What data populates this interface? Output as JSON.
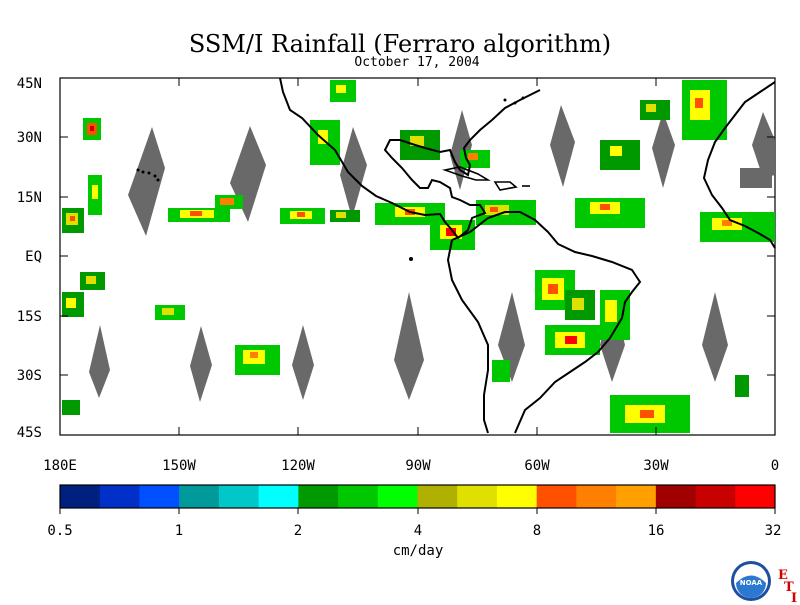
{
  "title": "SSM/I Rainfall (Ferraro algorithm)",
  "subtitle": "October 17, 2004",
  "lat_labels": [
    "45N",
    "30N",
    "15N",
    "EQ",
    "15S",
    "30S",
    "45S"
  ],
  "lon_labels": [
    "180E",
    "150W",
    "120W",
    "90W",
    "60W",
    "30W",
    "0"
  ],
  "colorbar": {
    "unit": "cm/day",
    "tick_labels": [
      "0.5",
      "1",
      "2",
      "4",
      "8",
      "16",
      "32"
    ],
    "colors": [
      "#00207f",
      "#0030c8",
      "#0050ff",
      "#009a9a",
      "#00c8c8",
      "#00ffff",
      "#009a00",
      "#00c800",
      "#00ff00",
      "#b0b000",
      "#e0e000",
      "#ffff00",
      "#ff5000",
      "#ff8000",
      "#ffa000",
      "#a00000",
      "#c80000",
      "#ff0000"
    ]
  },
  "gap_color": "#696969",
  "logo": {
    "text": "NOAA",
    "letters": [
      "E",
      "T",
      "I"
    ]
  }
}
